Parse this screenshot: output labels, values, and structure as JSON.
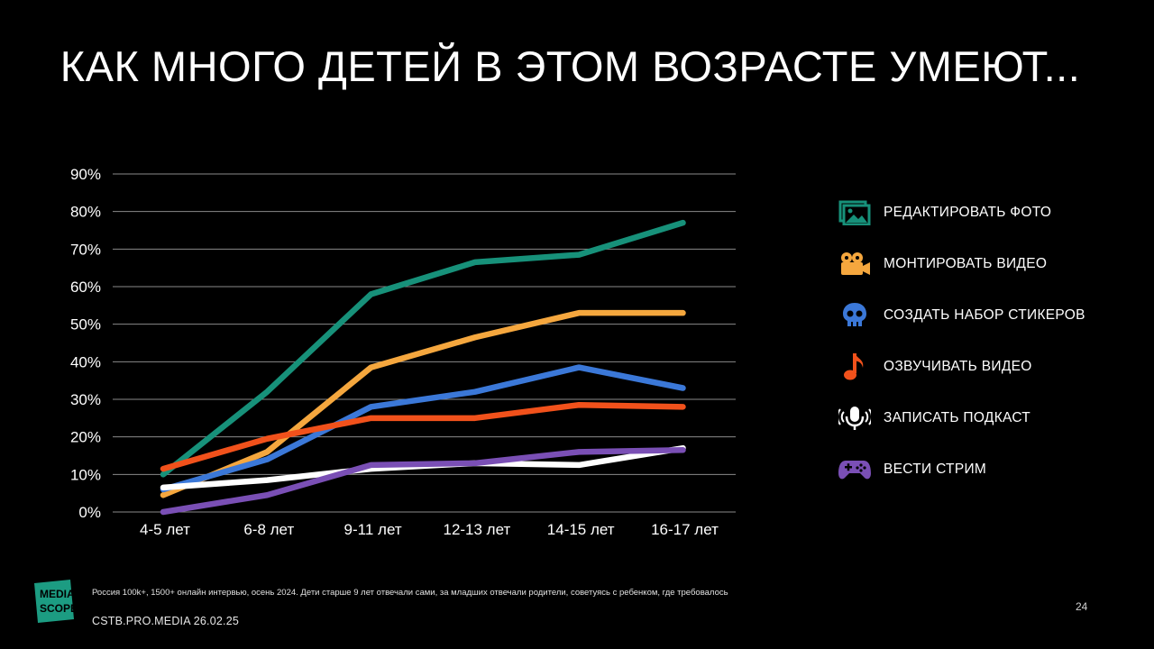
{
  "title": "КАК МНОГО ДЕТЕЙ В ЭТОМ ВОЗРАСТЕ УМЕЮТ...",
  "chart_data": {
    "type": "line",
    "categories": [
      "4-5 лет",
      "6-8 лет",
      "9-11 лет",
      "12-13 лет",
      "14-15 лет",
      "16-17 лет"
    ],
    "yticks": [
      "0%",
      "10%",
      "20%",
      "30%",
      "40%",
      "50%",
      "60%",
      "70%",
      "80%",
      "90%"
    ],
    "ylim": [
      0,
      90
    ],
    "grid": true,
    "legend_position": "right",
    "series": [
      {
        "name": "РЕДАКТИРОВАТЬ ФОТО",
        "color": "#17917a",
        "icon": "photo-edit-icon",
        "values": [
          10,
          32,
          58,
          66.5,
          68.5,
          77
        ]
      },
      {
        "name": "МОНТИРОВАТЬ ВИДЕО",
        "color": "#f5a73e",
        "icon": "video-camera-icon",
        "values": [
          4.5,
          16,
          38.5,
          46.5,
          53,
          53
        ]
      },
      {
        "name": "СОЗДАТЬ НАБОР СТИКЕРОВ",
        "color": "#3b78d8",
        "icon": "skull-icon",
        "values": [
          6,
          14,
          28,
          32,
          38.5,
          33
        ]
      },
      {
        "name": "ОЗВУЧИВАТЬ ВИДЕО",
        "color": "#f1511b",
        "icon": "music-note-icon",
        "values": [
          11.5,
          19.5,
          25,
          25,
          28.5,
          28
        ]
      },
      {
        "name": "ЗАПИСАТЬ ПОДКАСТ",
        "color": "#ffffff",
        "icon": "microphone-icon",
        "values": [
          6.5,
          8.5,
          11.5,
          13,
          12.5,
          17
        ]
      },
      {
        "name": "ВЕСТИ СТРИМ",
        "color": "#7a4fb5",
        "icon": "gamepad-icon",
        "values": [
          0,
          4.5,
          12.5,
          13,
          16,
          16.5
        ]
      }
    ]
  },
  "footer": {
    "logo_text": "MEDIA SCOPE",
    "footnote": "Россия 100k+, 1500+ онлайн интервью, осень 2024. Дети старше 9 лет отвечали сами, за младших отвечали родители, советуясь с ребенком, где требовалось",
    "source": "CSTB.PRO.MEDIA 26.02.25",
    "page_number": "24"
  },
  "colors": {
    "background": "#000000",
    "text": "#ffffff",
    "grid": "#8a8a8a",
    "logo": "#1c9c82"
  }
}
